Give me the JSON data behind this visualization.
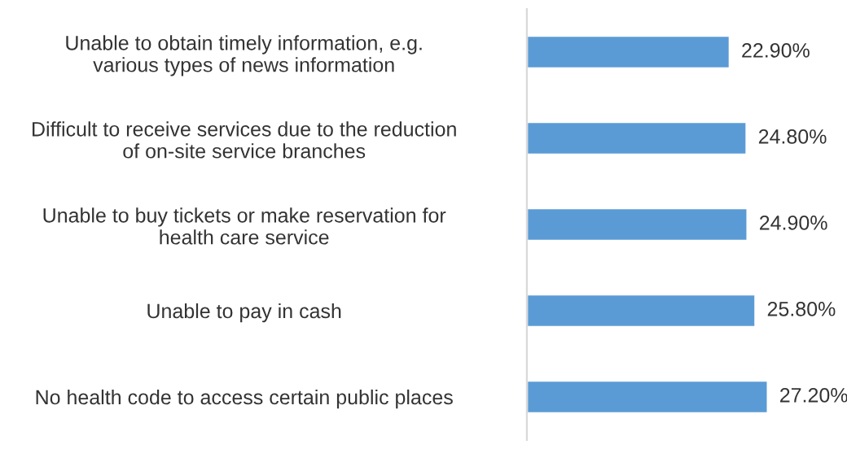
{
  "chart_data": {
    "type": "bar",
    "orientation": "horizontal",
    "categories": [
      "Unable to obtain timely information, e.g.\nvarious types of news information",
      "Difficult to receive services due to the reduction\nof on-site service branches",
      "Unable to buy tickets or make reservation for\nhealth care service",
      "Unable to pay in cash",
      "No health code to access certain public places"
    ],
    "values": [
      22.9,
      24.8,
      24.9,
      25.8,
      27.2
    ],
    "value_labels": [
      "22.90%",
      "24.80%",
      "24.90%",
      "25.80%",
      "27.20%"
    ],
    "color": "#5b9bd5",
    "tick_labels": "y",
    "grid": false,
    "legend": false
  }
}
